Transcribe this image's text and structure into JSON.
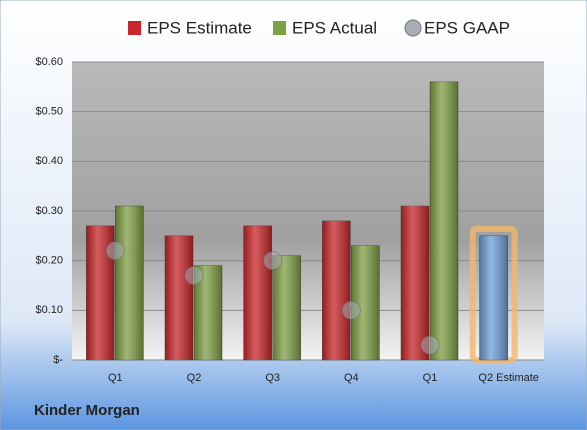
{
  "chart_data": {
    "type": "bar",
    "title": "Kinder Morgan",
    "categories": [
      "Q1",
      "Q2",
      "Q3",
      "Q4",
      "Q1",
      "Q2 Estimate"
    ],
    "series": [
      {
        "name": "EPS Estimate",
        "color": "#c8262a",
        "values": [
          0.27,
          0.25,
          0.27,
          0.28,
          0.31,
          0.25
        ]
      },
      {
        "name": "EPS Actual",
        "color": "#7f9f45",
        "values": [
          0.31,
          0.19,
          0.21,
          0.23,
          0.56,
          null
        ]
      },
      {
        "name": "EPS GAAP",
        "color": "#a9aeb6",
        "marker": "circle",
        "values": [
          0.22,
          0.17,
          0.2,
          0.1,
          0.03,
          null
        ]
      }
    ],
    "highlight": {
      "series": 0,
      "index": 5,
      "color": "#6f9fd8",
      "glow": "#f5b66a"
    },
    "ylim": [
      0,
      0.6
    ],
    "yticks": [
      {
        "value": 0,
        "label": "$-"
      },
      {
        "value": 0.1,
        "label": "$0.10"
      },
      {
        "value": 0.2,
        "label": "$0.20"
      },
      {
        "value": 0.3,
        "label": "$0.30"
      },
      {
        "value": 0.4,
        "label": "$0.40"
      },
      {
        "value": 0.5,
        "label": "$0.50"
      },
      {
        "value": 0.6,
        "label": "$0.60"
      }
    ],
    "grid": true,
    "legend": "top"
  }
}
